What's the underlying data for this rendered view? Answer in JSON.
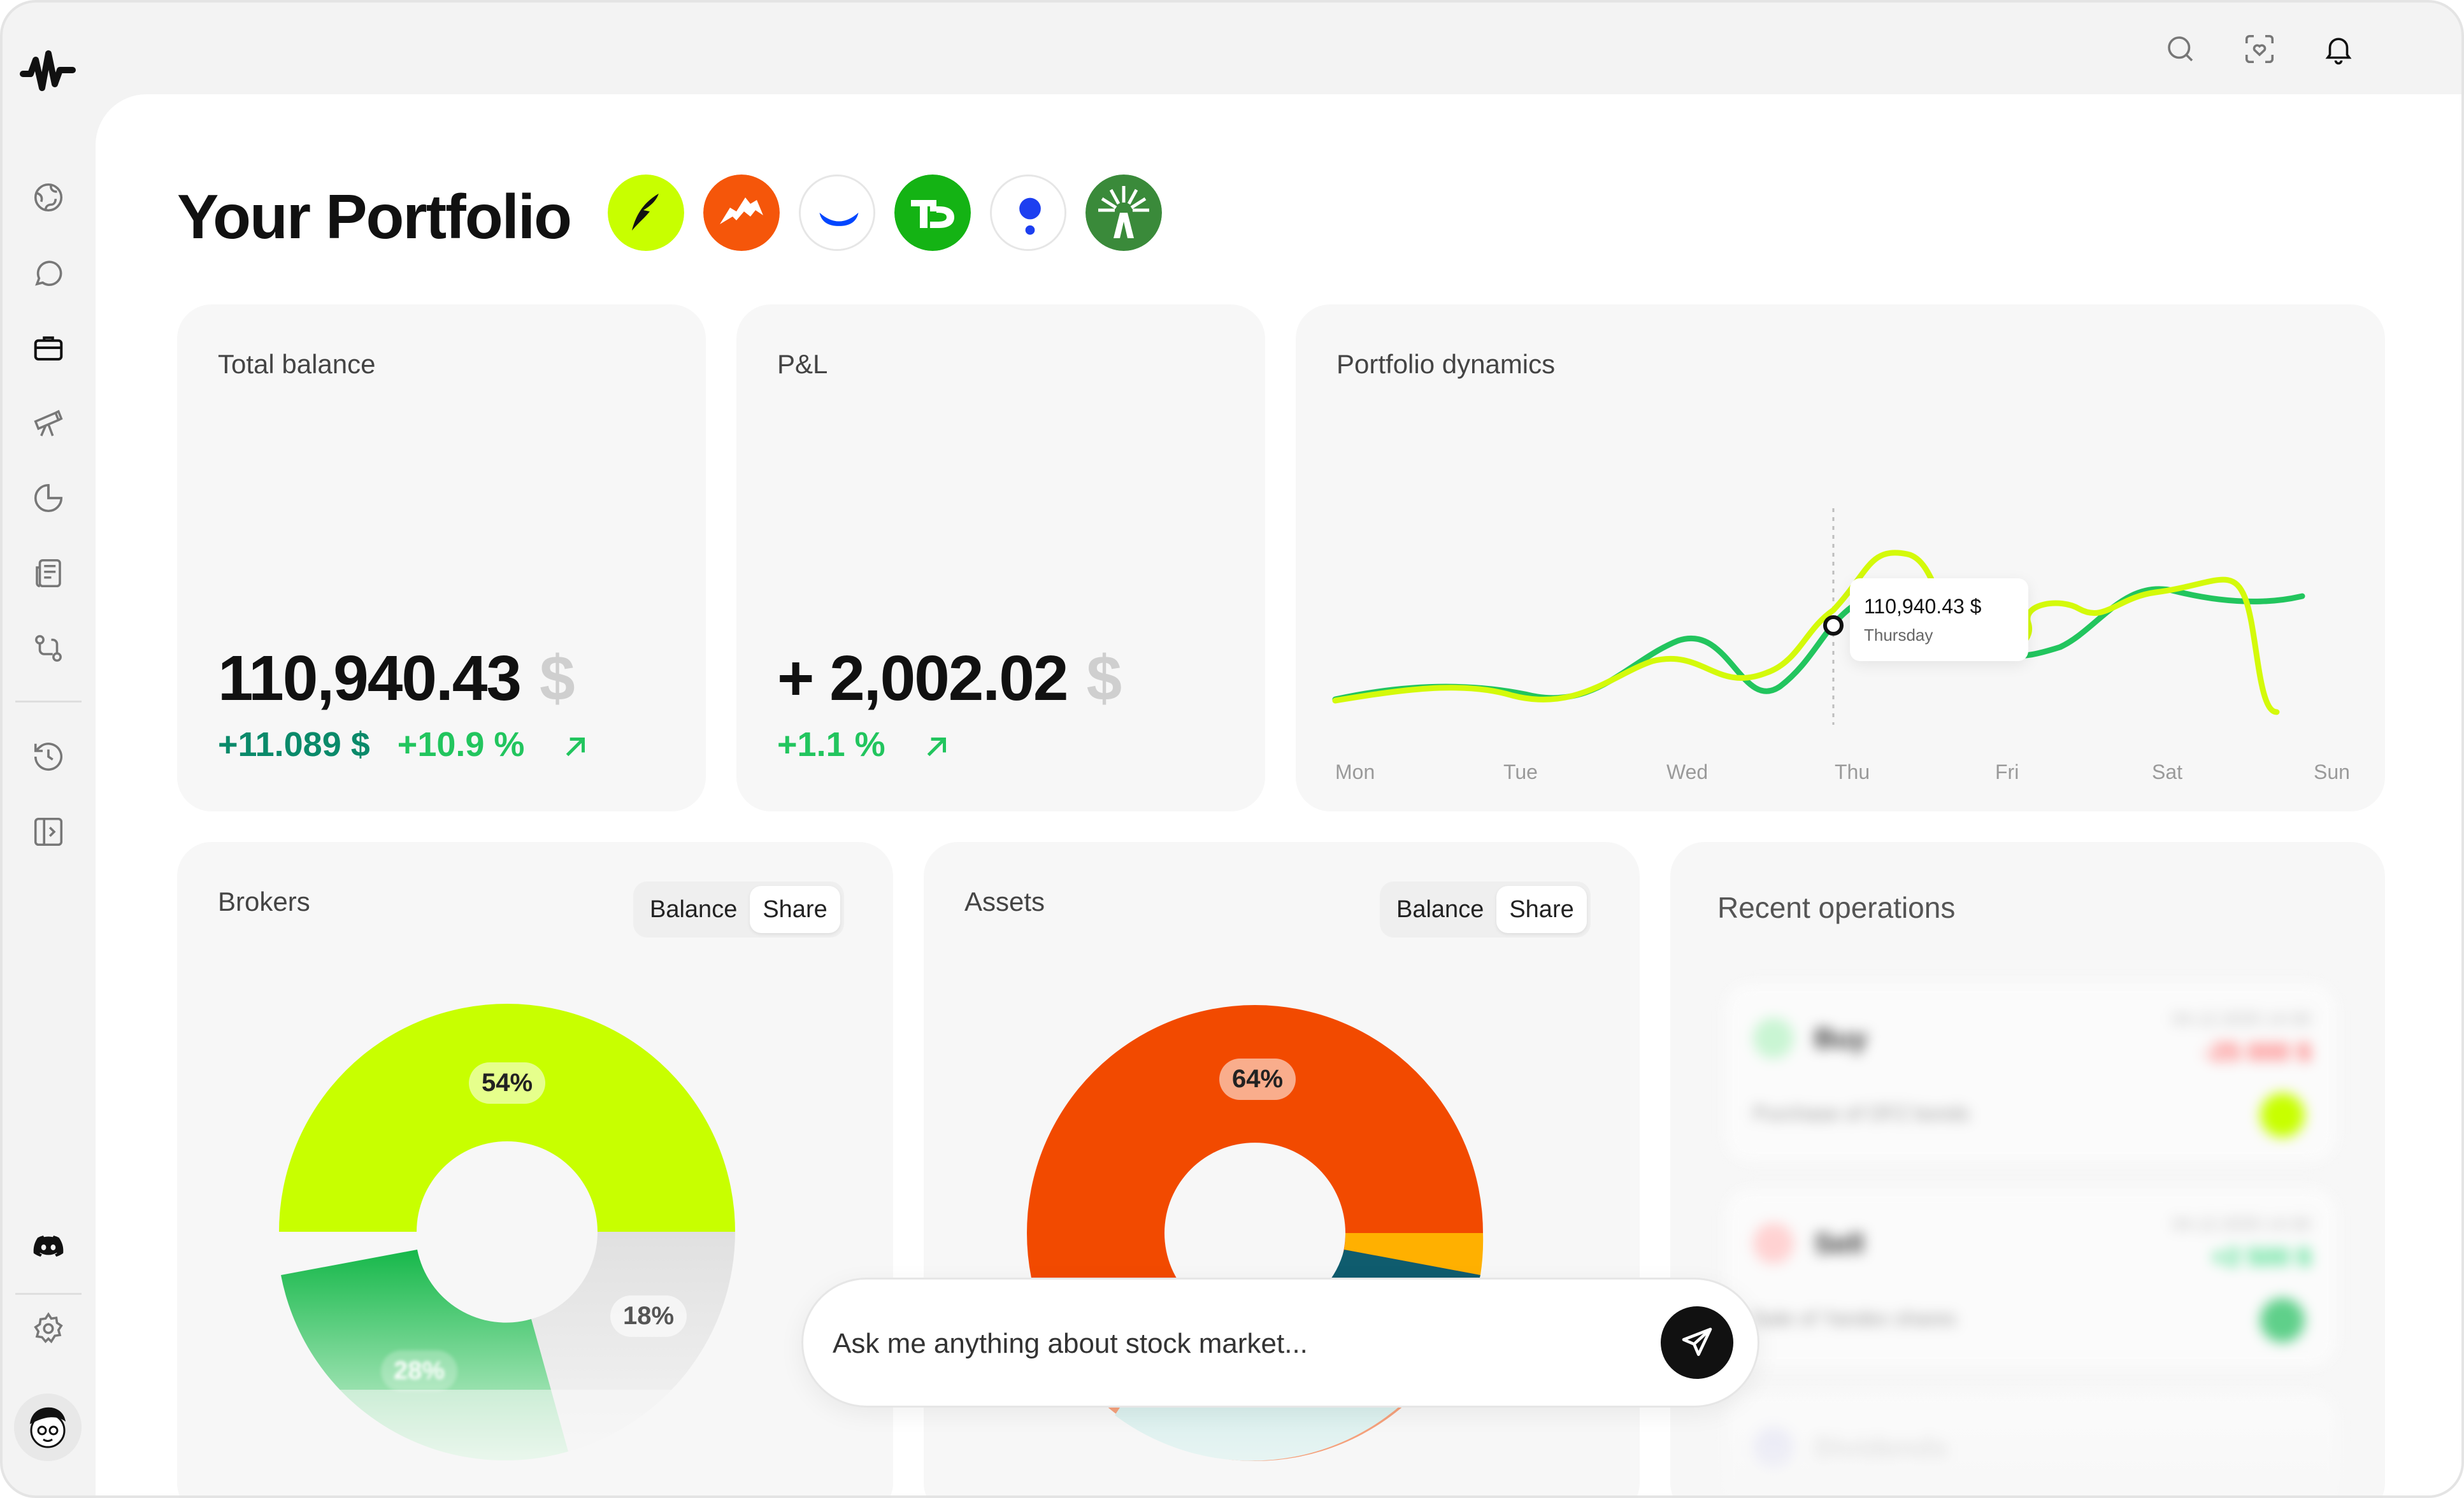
{
  "sidebar": {
    "items": [
      {
        "name": "nav-globe-icon"
      },
      {
        "name": "nav-chat-icon"
      },
      {
        "name": "nav-portfolio-icon"
      },
      {
        "name": "nav-telescope-icon"
      },
      {
        "name": "nav-pie-chart-icon"
      },
      {
        "name": "nav-news-icon"
      },
      {
        "name": "nav-routes-icon"
      },
      {
        "name": "nav-history-icon"
      },
      {
        "name": "nav-panel-icon"
      }
    ]
  },
  "header": {
    "icons": [
      "search-icon",
      "scan-heart-icon",
      "bell-icon"
    ]
  },
  "page": {
    "title": "Your Portfolio",
    "brokers": [
      "robinhood-logo",
      "webull-logo",
      "coinbase-logo",
      "td-logo",
      "public-logo",
      "fidelity-logo"
    ]
  },
  "total_balance": {
    "title": "Total balance",
    "value": "110,940.43",
    "currency": "$",
    "change_abs": "+11.089 $",
    "change_pct": "+10.9 %"
  },
  "pnl": {
    "title": "P&L",
    "value": "+ 2,002.02",
    "currency": "$",
    "change_pct": "+1.1 %"
  },
  "dynamics": {
    "title": "Portfolio dynamics",
    "tooltip_value": "110,940.43 $",
    "tooltip_day": "Thursday",
    "days": [
      "Mon",
      "Tue",
      "Wed",
      "Thu",
      "Fri",
      "Sat",
      "Sun"
    ]
  },
  "brokers_card": {
    "title": "Brokers",
    "toggle": [
      "Balance",
      "Share"
    ],
    "slices": [
      {
        "label": "54%",
        "value": 54,
        "color": "#c8ff00"
      },
      {
        "label": "18%",
        "value": 18,
        "color": "#e3e3e3"
      },
      {
        "label": "28%",
        "value": 28,
        "color": "#22c55e"
      }
    ]
  },
  "assets_card": {
    "title": "Assets",
    "toggle": [
      "Balance",
      "Share"
    ],
    "slices": [
      {
        "label": "64%",
        "value": 64,
        "color": "#f24a00"
      }
    ]
  },
  "operations": {
    "title": "Recent operations",
    "items": [
      {
        "type": "Buy",
        "date": "04.12.2025 14:30",
        "amount": "-25 000 $",
        "desc": "Purchase of OFZ bonds"
      },
      {
        "type": "Sell",
        "date": "04.12.2025 14:30",
        "amount": "+2 500 $",
        "desc": "Sale of Yandex shares"
      },
      {
        "type": "Dividends",
        "date": "",
        "amount": "",
        "desc": ""
      }
    ]
  },
  "ask": {
    "placeholder": "Ask me anything about stock market..."
  },
  "colors": {
    "lime": "#c8ff00",
    "green": "#22c55e",
    "teal": "#0a8a6a",
    "orange": "#f24a00"
  }
}
